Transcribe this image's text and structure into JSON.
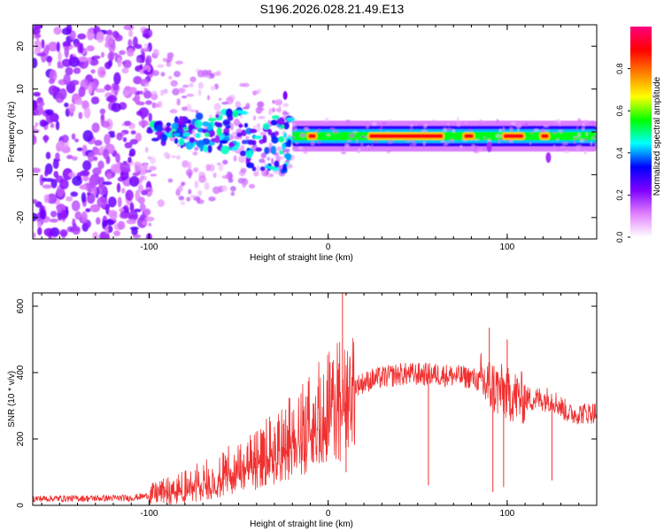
{
  "title": "S196.2026.028.21.49.E13",
  "chart_data": [
    {
      "type": "heatmap",
      "title": "S196.2026.028.21.49.E13",
      "xlabel": "Height of straight line (km)",
      "ylabel": "Frequency (Hz)",
      "xlim": [
        -165,
        150
      ],
      "ylim": [
        -25,
        25
      ],
      "xticks": [
        -100,
        0,
        100
      ],
      "yticks": [
        -20,
        -10,
        0,
        10,
        20
      ],
      "colorbar": {
        "label": "Normalized spectral amplitude",
        "range": [
          0.0,
          1.0
        ],
        "ticks": [
          0.0,
          0.2,
          0.4,
          0.6,
          0.8
        ],
        "tick_labels": [
          "0.0",
          "0.2",
          "0.4",
          "0.6",
          "0.8"
        ],
        "colors": [
          "#ffffff",
          "#e080ff",
          "#8000ff",
          "#0000ff",
          "#00ffff",
          "#00ff00",
          "#ffff00",
          "#ff8000",
          "#ff0000",
          "#ff0080"
        ]
      },
      "features": {
        "noise_region_x": [
          -165,
          -105
        ],
        "transition_region_x": [
          -105,
          -20
        ],
        "line_region_x": [
          -20,
          150
        ],
        "line_center_freq_hz": -1,
        "peak_spans_x": [
          [
            22,
            65
          ],
          [
            97,
            110
          ],
          [
            -12,
            -6
          ],
          [
            75,
            82
          ],
          [
            118,
            124
          ]
        ]
      }
    },
    {
      "type": "line",
      "title": "",
      "xlabel": "Height of straight line (km)",
      "ylabel": "SNR (10 * v/v)",
      "xlim": [
        -165,
        150
      ],
      "ylim": [
        0,
        640
      ],
      "xticks": [
        -100,
        0,
        100
      ],
      "yticks": [
        0,
        200,
        400,
        600
      ],
      "color": "#f03030",
      "series": [
        {
          "name": "SNR",
          "anchors_x": [
            -165,
            -110,
            -100,
            -80,
            -60,
            -40,
            -25,
            -15,
            -5,
            5,
            15,
            25,
            40,
            60,
            80,
            90,
            100,
            110,
            125,
            135,
            150
          ],
          "anchors_y": [
            20,
            22,
            30,
            60,
            100,
            150,
            200,
            240,
            300,
            330,
            360,
            380,
            395,
            395,
            385,
            360,
            335,
            320,
            320,
            275,
            280
          ],
          "spikes": [
            {
              "x": 8,
              "y": 640
            },
            {
              "x": 90,
              "y": 535
            },
            {
              "x": 92,
              "y": 40
            },
            {
              "x": 10,
              "y": 100
            },
            {
              "x": 56,
              "y": 60
            },
            {
              "x": 98,
              "y": 55
            },
            {
              "x": 125,
              "y": 75
            },
            {
              "x": 100,
              "y": 500
            }
          ]
        }
      ]
    }
  ]
}
